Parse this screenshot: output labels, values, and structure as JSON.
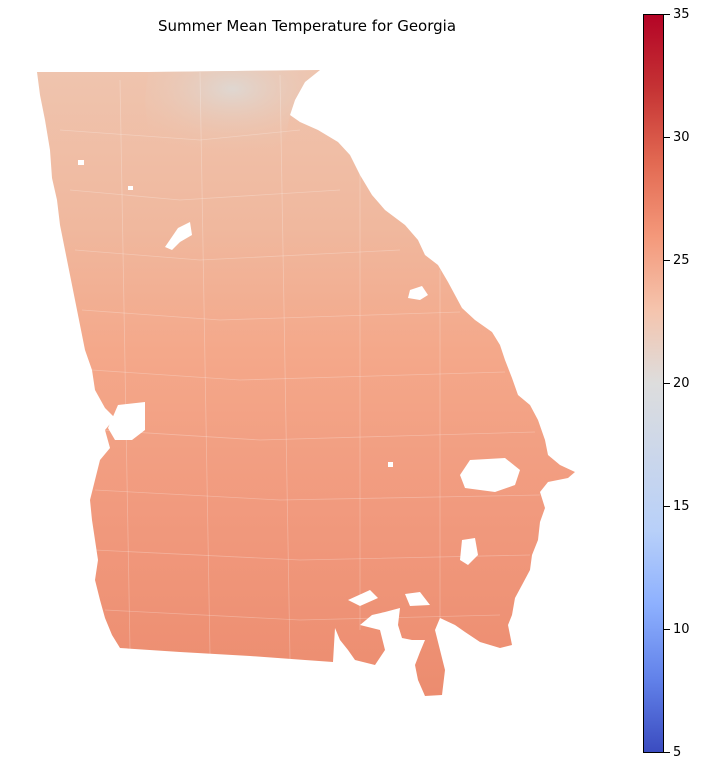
{
  "title": "Summer Mean Temperature for Georgia",
  "colorbar": {
    "min": 5,
    "max": 35,
    "ticks": [
      "5",
      "10",
      "15",
      "20",
      "25",
      "30",
      "35"
    ],
    "colormap": "coolwarm"
  },
  "colors": {
    "north_mountains": "#dfd7d1",
    "north_piedmont": "#efc2aa",
    "central": "#f4a98b",
    "south": "#ee9274",
    "background": "#ffffff"
  }
}
